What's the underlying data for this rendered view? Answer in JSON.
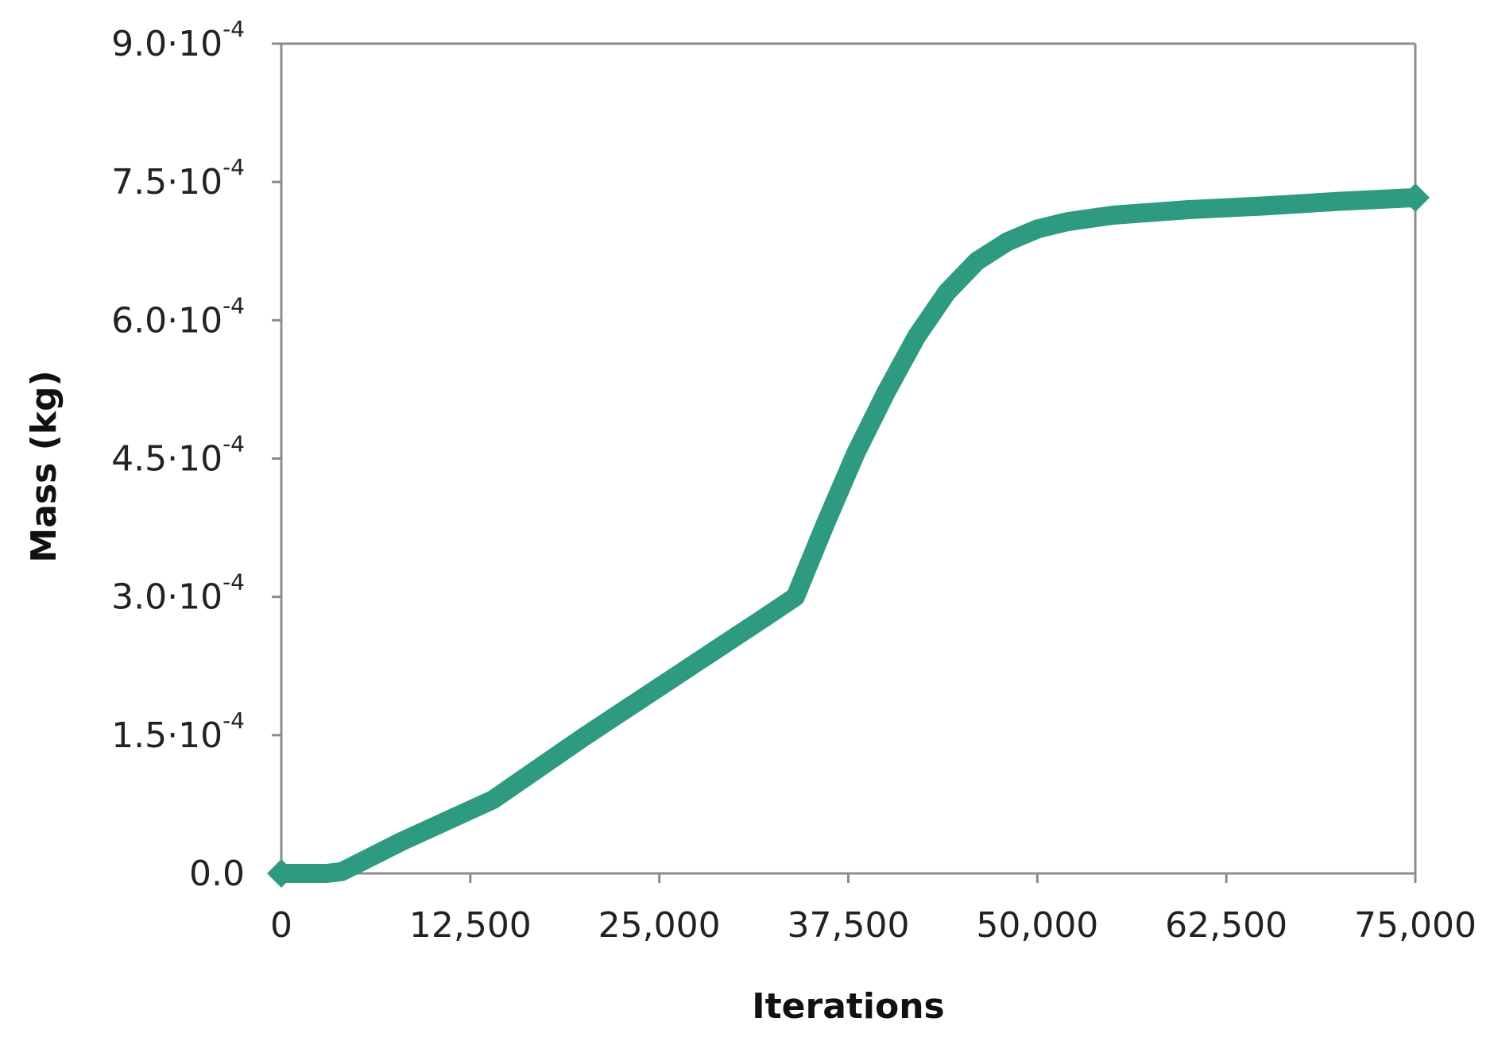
{
  "chart_data": {
    "type": "line",
    "title": "",
    "xlabel": "Iterations",
    "ylabel": "Mass (kg)",
    "xlim": [
      0,
      75000
    ],
    "ylim": [
      0,
      0.0009
    ],
    "grid": false,
    "legend": "none",
    "line_color": "#2e9a80",
    "x_ticks": [
      {
        "value": 0,
        "label": "0"
      },
      {
        "value": 12500,
        "label": "12,500"
      },
      {
        "value": 25000,
        "label": "25,000"
      },
      {
        "value": 37500,
        "label": "37,500"
      },
      {
        "value": 50000,
        "label": "50,000"
      },
      {
        "value": 62500,
        "label": "62,500"
      },
      {
        "value": 75000,
        "label": "75,000"
      }
    ],
    "y_ticks": [
      {
        "value": 0,
        "mantissa": "0.0",
        "exponent": ""
      },
      {
        "value": 0.00015,
        "mantissa": "1.5·10",
        "exponent": "-4"
      },
      {
        "value": 0.0003,
        "mantissa": "3.0·10",
        "exponent": "-4"
      },
      {
        "value": 0.00045,
        "mantissa": "4.5·10",
        "exponent": "-4"
      },
      {
        "value": 0.0006,
        "mantissa": "6.0·10",
        "exponent": "-4"
      },
      {
        "value": 0.00075,
        "mantissa": "7.5·10",
        "exponent": "-4"
      },
      {
        "value": 0.0009,
        "mantissa": "9.0·10",
        "exponent": "-4"
      }
    ],
    "series": [
      {
        "x": [
          0,
          3000,
          4000,
          8000,
          14000,
          20000,
          26000,
          32000,
          34000,
          36000,
          38000,
          40000,
          42000,
          44000,
          46000,
          48000,
          50000,
          52000,
          55000,
          60000,
          65000,
          70000,
          75000
        ],
        "y": [
          0,
          0,
          2e-06,
          3.5e-05,
          8e-05,
          0.000148,
          0.000213,
          0.000278,
          0.0003,
          0.00038,
          0.000456,
          0.000522,
          0.000582,
          0.00063,
          0.000664,
          0.000685,
          0.000699,
          0.000707,
          0.000714,
          0.00072,
          0.000724,
          0.000729,
          0.000733
        ]
      }
    ]
  }
}
